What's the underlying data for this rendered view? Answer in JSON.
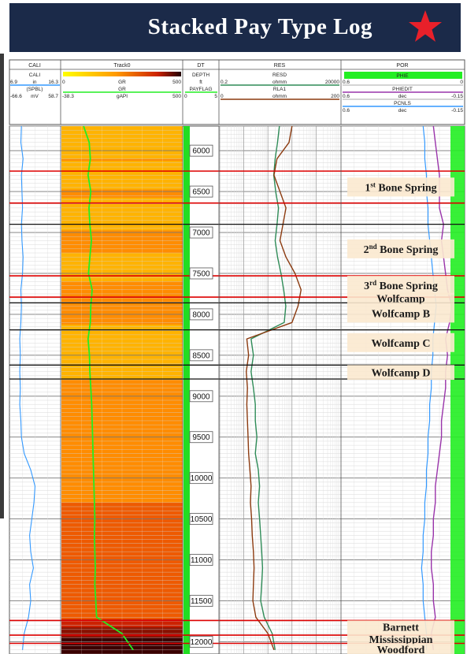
{
  "title": "Stacked Pay Type Log",
  "colors": {
    "banner": "#1b2a49",
    "star": "#e8202a",
    "gr": "#22ee22",
    "res_deep": "#2e8b57",
    "res_shallow": "#8b3a0f",
    "phie": "#9933aa",
    "pcnls": "#3399ff",
    "cali": "#3399ff",
    "formation_top": "#dd0000",
    "zone_label_bg": "#fbe9cf"
  },
  "tracks": [
    {
      "name": "CALI"
    },
    {
      "name": "Track0"
    },
    {
      "name": "DT"
    },
    {
      "name": "RES"
    },
    {
      "name": "POR"
    }
  ],
  "curves": {
    "cali": {
      "name": "CALI",
      "min": "6.9",
      "unit": "in",
      "max": "16.3"
    },
    "spbl": {
      "name": "(SPBL)",
      "min": "-66.6",
      "unit": "mV",
      "max": "58.7"
    },
    "gr_fill": {
      "min": "0",
      "name": "GR",
      "max": "500"
    },
    "gr": {
      "min": "-38.3",
      "name": "GR",
      "unit": "gAPI",
      "max": "500"
    },
    "depth": {
      "name": "DEPTH",
      "unit": "ft"
    },
    "payflag": {
      "min": "0",
      "name": "PAYFLAG",
      "max": "5"
    },
    "resd": {
      "name": "RESD",
      "min": "0.2",
      "unit": "ohmm",
      "max": "20000"
    },
    "rla1": {
      "name": "RLA1",
      "min": "0",
      "unit": "ohmm",
      "max": "200"
    },
    "phie": {
      "name": "PHIE",
      "min": "0.6",
      "max": "0"
    },
    "phiedit": {
      "name": "PHIEDIT",
      "min": "0.6",
      "unit": "dec",
      "max": "-0.15"
    },
    "pcnls": {
      "name": "PCNLS",
      "min": "0.6",
      "unit": "dec",
      "max": "-0.15"
    }
  },
  "chart_data": {
    "type": "line",
    "y_axis": {
      "label": "DEPTH",
      "unit": "ft",
      "range": [
        5700,
        12150
      ],
      "reversed": true,
      "ticks": [
        6000,
        6500,
        7000,
        7500,
        8000,
        8500,
        9000,
        9500,
        10000,
        10500,
        11000,
        11500,
        12000
      ]
    },
    "formation_tops": [
      {
        "name": "1st Bone Spring",
        "sup": "st",
        "base": "1",
        "rest": " Bone Spring",
        "depth": 6250,
        "next": 6640
      },
      {
        "name": "2nd Bone Spring",
        "sup": "nd",
        "base": "2",
        "rest": " Bone Spring",
        "depth": 6900,
        "next": 7500
      },
      {
        "name": "3rd Bone Spring",
        "sup": "rd",
        "base": "3",
        "rest": " Bone Spring",
        "depth": 7530,
        "next": 7760
      },
      {
        "name": "Wolfcamp",
        "depth": 7790,
        "next": 7820
      },
      {
        "name": "Wolfcamp B",
        "depth": 7830,
        "next": 8140
      },
      {
        "name": "Wolfcamp C",
        "depth": 8200,
        "next": 8490
      },
      {
        "name": "Wolfcamp D",
        "depth": 8620,
        "next": 8800
      },
      {
        "name": "Barnett",
        "depth": 11740,
        "next": 11900
      },
      {
        "name": "Mississippian",
        "depth": 11920,
        "next": 12010
      },
      {
        "name": "Woodford",
        "depth": 12030,
        "next": 12150
      }
    ],
    "red_lines": [
      6250,
      6640,
      7530,
      7790,
      11740,
      11920,
      12020
    ],
    "black_lines": [
      6900,
      7860,
      8190,
      8620,
      8790
    ],
    "series": [
      {
        "key": "cali",
        "track": "CALI",
        "values": [
          [
            5700,
            9.1
          ],
          [
            5900,
            9.0
          ],
          [
            6100,
            9.4
          ],
          [
            6300,
            9.1
          ],
          [
            6500,
            9.2
          ],
          [
            6700,
            9.3
          ],
          [
            6900,
            9.1
          ],
          [
            7100,
            9.2
          ],
          [
            7300,
            9.4
          ],
          [
            7500,
            9.3
          ],
          [
            7700,
            9.0
          ],
          [
            7900,
            9.1
          ],
          [
            8100,
            9.0
          ],
          [
            8300,
            8.8
          ],
          [
            8500,
            8.9
          ],
          [
            8700,
            8.8
          ],
          [
            8900,
            8.9
          ],
          [
            9100,
            8.8
          ],
          [
            9300,
            9.0
          ],
          [
            9500,
            9.1
          ],
          [
            9700,
            9.6
          ],
          [
            9900,
            10.8
          ],
          [
            10100,
            11.6
          ],
          [
            10300,
            11.4
          ],
          [
            10500,
            11.0
          ],
          [
            10700,
            10.6
          ],
          [
            10900,
            10.8
          ],
          [
            11100,
            11.3
          ],
          [
            11300,
            10.6
          ],
          [
            11500,
            10.8
          ],
          [
            11700,
            10.4
          ],
          [
            11900,
            9.6
          ],
          [
            12100,
            9.3
          ]
        ]
      },
      {
        "key": "gr",
        "track": "Track0",
        "values": [
          [
            5700,
            60
          ],
          [
            5900,
            85
          ],
          [
            6100,
            90
          ],
          [
            6300,
            80
          ],
          [
            6500,
            92
          ],
          [
            6700,
            84
          ],
          [
            6900,
            88
          ],
          [
            7100,
            95
          ],
          [
            7300,
            88
          ],
          [
            7500,
            82
          ],
          [
            7700,
            98
          ],
          [
            7900,
            92
          ],
          [
            8100,
            90
          ],
          [
            8300,
            80
          ],
          [
            8500,
            86
          ],
          [
            8700,
            88
          ],
          [
            8900,
            92
          ],
          [
            9100,
            96
          ],
          [
            9300,
            98
          ],
          [
            9500,
            100
          ],
          [
            9700,
            102
          ],
          [
            9900,
            104
          ],
          [
            10100,
            106
          ],
          [
            10300,
            108
          ],
          [
            10500,
            110
          ],
          [
            10700,
            108
          ],
          [
            10900,
            110
          ],
          [
            11100,
            112
          ],
          [
            11300,
            110
          ],
          [
            11500,
            114
          ],
          [
            11700,
            118
          ],
          [
            11900,
            230
          ],
          [
            12100,
            280
          ]
        ]
      },
      {
        "key": "resd",
        "track": "RES",
        "values": [
          [
            5700,
            60
          ],
          [
            5900,
            50
          ],
          [
            6100,
            40
          ],
          [
            6300,
            35
          ],
          [
            6500,
            42
          ],
          [
            6700,
            55
          ],
          [
            6900,
            48
          ],
          [
            7100,
            40
          ],
          [
            7300,
            50
          ],
          [
            7500,
            70
          ],
          [
            7700,
            90
          ],
          [
            7900,
            110
          ],
          [
            8100,
            95
          ],
          [
            8300,
            4
          ],
          [
            8500,
            5
          ],
          [
            8700,
            4
          ],
          [
            8900,
            5
          ],
          [
            9100,
            6
          ],
          [
            9300,
            6
          ],
          [
            9500,
            7
          ],
          [
            9700,
            6
          ],
          [
            9900,
            8
          ],
          [
            10100,
            9
          ],
          [
            10300,
            8
          ],
          [
            10500,
            9
          ],
          [
            10700,
            10
          ],
          [
            10900,
            11
          ],
          [
            11100,
            12
          ],
          [
            11300,
            11
          ],
          [
            11500,
            10
          ],
          [
            11700,
            14
          ],
          [
            11900,
            30
          ],
          [
            12100,
            40
          ]
        ]
      },
      {
        "key": "rla1",
        "track": "RES",
        "values": [
          [
            5700,
            120
          ],
          [
            5900,
            115
          ],
          [
            6100,
            95
          ],
          [
            6300,
            90
          ],
          [
            6500,
            100
          ],
          [
            6700,
            110
          ],
          [
            6900,
            105
          ],
          [
            7100,
            100
          ],
          [
            7300,
            110
          ],
          [
            7500,
            125
          ],
          [
            7700,
            135
          ],
          [
            7900,
            130
          ],
          [
            8100,
            120
          ],
          [
            8300,
            45
          ],
          [
            8500,
            48
          ],
          [
            8700,
            44
          ],
          [
            8900,
            46
          ],
          [
            9100,
            45
          ],
          [
            9300,
            46
          ],
          [
            9500,
            47
          ],
          [
            9700,
            48
          ],
          [
            9900,
            50
          ],
          [
            10100,
            52
          ],
          [
            10300,
            51
          ],
          [
            10500,
            53
          ],
          [
            10700,
            54
          ],
          [
            10900,
            56
          ],
          [
            11100,
            57
          ],
          [
            11300,
            56
          ],
          [
            11500,
            55
          ],
          [
            11700,
            60
          ],
          [
            11900,
            80
          ],
          [
            12100,
            90
          ]
        ]
      },
      {
        "key": "phie",
        "track": "POR",
        "values": [
          [
            5700,
            0.15
          ],
          [
            5900,
            0.14
          ],
          [
            6100,
            0.13
          ],
          [
            6300,
            0.12
          ],
          [
            6500,
            0.12
          ],
          [
            6700,
            0.12
          ],
          [
            6900,
            0.1
          ],
          [
            7100,
            0.11
          ],
          [
            7300,
            0.1
          ],
          [
            7500,
            0.09
          ],
          [
            7700,
            0.08
          ],
          [
            7900,
            0.06
          ],
          [
            8100,
            0.07
          ],
          [
            8300,
            0.09
          ],
          [
            8500,
            0.08
          ],
          [
            8700,
            0.09
          ],
          [
            8900,
            0.09
          ],
          [
            9100,
            0.1
          ],
          [
            9300,
            0.11
          ],
          [
            9500,
            0.11
          ],
          [
            9700,
            0.12
          ],
          [
            9900,
            0.13
          ],
          [
            10100,
            0.14
          ],
          [
            10300,
            0.14
          ],
          [
            10500,
            0.15
          ],
          [
            10700,
            0.15
          ],
          [
            10900,
            0.16
          ],
          [
            11100,
            0.16
          ],
          [
            11300,
            0.15
          ],
          [
            11500,
            0.15
          ],
          [
            11700,
            0.14
          ],
          [
            11900,
            0.16
          ],
          [
            12100,
            0.15
          ]
        ]
      },
      {
        "key": "pcnls",
        "track": "POR",
        "values": [
          [
            5700,
            0.1
          ],
          [
            5900,
            0.09
          ],
          [
            6100,
            0.09
          ],
          [
            6300,
            0.08
          ],
          [
            6500,
            0.08
          ],
          [
            6700,
            0.07
          ],
          [
            6900,
            0.07
          ],
          [
            7100,
            0.06
          ],
          [
            7300,
            0.05
          ],
          [
            7500,
            0.04
          ],
          [
            7700,
            0.03
          ],
          [
            7900,
            0.02
          ],
          [
            8100,
            0.03
          ],
          [
            8300,
            0.04
          ],
          [
            8500,
            0.04
          ],
          [
            8700,
            0.05
          ],
          [
            8900,
            0.05
          ],
          [
            9100,
            0.06
          ],
          [
            9300,
            0.06
          ],
          [
            9500,
            0.07
          ],
          [
            9700,
            0.07
          ],
          [
            9900,
            0.08
          ],
          [
            10100,
            0.08
          ],
          [
            10300,
            0.09
          ],
          [
            10500,
            0.09
          ],
          [
            10700,
            0.1
          ],
          [
            10900,
            0.1
          ],
          [
            11100,
            0.11
          ],
          [
            11300,
            0.1
          ],
          [
            11500,
            0.1
          ],
          [
            11700,
            0.09
          ],
          [
            11900,
            0.08
          ],
          [
            12100,
            0.08
          ]
        ]
      }
    ]
  }
}
